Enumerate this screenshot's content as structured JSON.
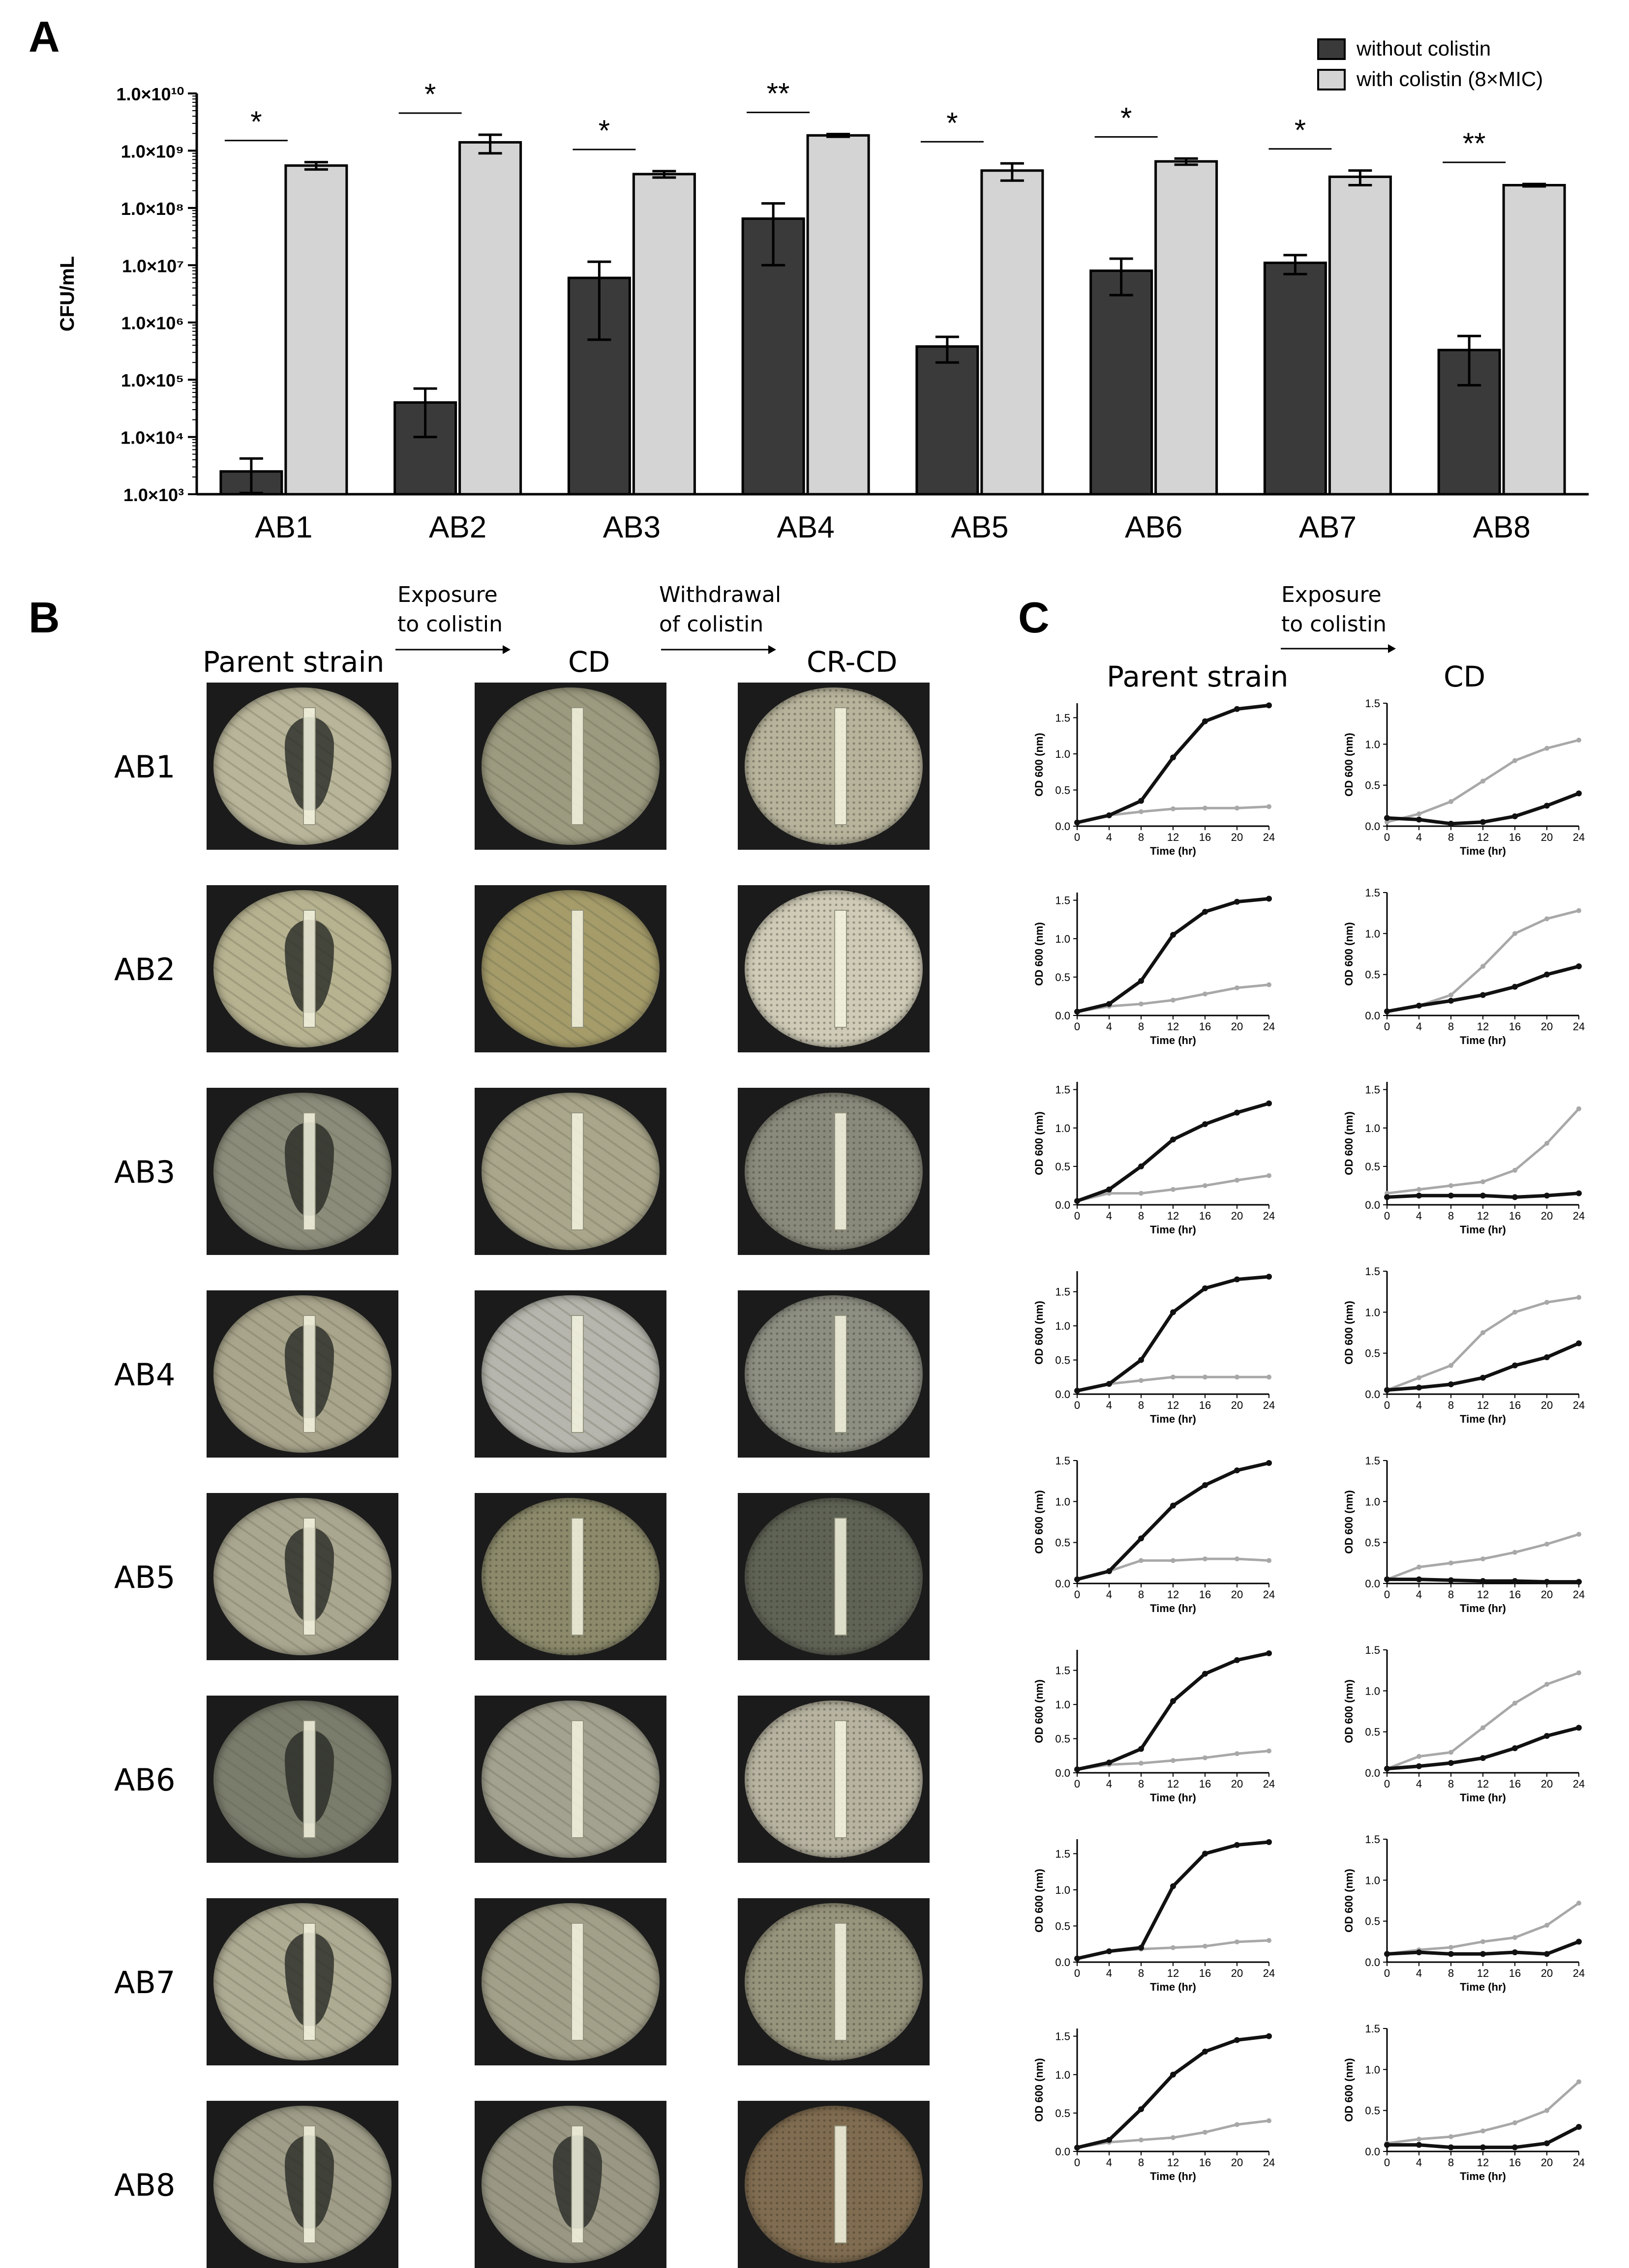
{
  "panel_labels": {
    "a": "A",
    "b": "B",
    "c": "C"
  },
  "colors": {
    "without": "#3a3a3a",
    "with": "#d4d4d4"
  },
  "chart_data": [
    {
      "type": "bar",
      "panel": "A",
      "ylabel": "CFU/mL",
      "scale": "log10",
      "ylim": [
        1000,
        10000000000
      ],
      "ytick_labels": [
        "1.0×10³",
        "1.0×10⁴",
        "1.0×10⁵",
        "1.0×10⁶",
        "1.0×10⁷",
        "1.0×10⁸",
        "1.0×10⁹",
        "1.0×10¹⁰"
      ],
      "categories": [
        "AB1",
        "AB2",
        "AB3",
        "AB4",
        "AB5",
        "AB6",
        "AB7",
        "AB8"
      ],
      "series": [
        {
          "name": "without colistin",
          "values": [
            2500,
            40000,
            6000000,
            65000000,
            380000,
            8000000,
            11000000,
            330000
          ],
          "errors": [
            1700,
            30000,
            5500000,
            55000000,
            180000,
            5000000,
            4000000,
            250000
          ]
        },
        {
          "name": "with colistin (8×MIC)",
          "values": [
            550000000,
            1400000000,
            390000000,
            1850000000,
            450000000,
            650000000,
            350000000,
            250000000
          ],
          "errors": [
            80000000,
            500000000,
            50000000,
            100000000,
            150000000,
            80000000,
            100000000,
            12000000
          ]
        }
      ],
      "significance": [
        "*",
        "*",
        "*",
        "**",
        "*",
        "*",
        "*",
        "**"
      ],
      "legend_position": "top-right"
    },
    {
      "type": "line",
      "panel": "C",
      "columns": [
        "Parent strain",
        "CD"
      ],
      "arrow_text": [
        "Exposure",
        "to colistin"
      ],
      "xlabel": "Time (hr)",
      "ylabel": "OD 600 (nm)",
      "x": [
        0,
        4,
        8,
        12,
        16,
        20,
        24
      ],
      "xticks": [
        "0",
        "4",
        "8",
        "12",
        "16",
        "20",
        "24"
      ],
      "rows": [
        {
          "strain": "AB1",
          "parent": {
            "ylim": [
              0,
              1.7
            ],
            "yticks": [
              "0.0",
              "0.5",
              "1.0",
              "1.5"
            ],
            "dark": [
              0.05,
              0.15,
              0.35,
              0.95,
              1.45,
              1.62,
              1.67
            ],
            "light": [
              0.05,
              0.15,
              0.2,
              0.24,
              0.25,
              0.25,
              0.27
            ]
          },
          "cd": {
            "ylim": [
              0,
              1.5
            ],
            "yticks": [
              "0.0",
              "0.5",
              "1.0",
              "1.5"
            ],
            "dark": [
              0.1,
              0.08,
              0.03,
              0.05,
              0.12,
              0.25,
              0.4
            ],
            "light": [
              0.05,
              0.15,
              0.3,
              0.55,
              0.8,
              0.95,
              1.05
            ]
          }
        },
        {
          "strain": "AB2",
          "parent": {
            "ylim": [
              0,
              1.6
            ],
            "yticks": [
              "0.0",
              "0.5",
              "1.0",
              "1.5"
            ],
            "dark": [
              0.05,
              0.15,
              0.45,
              1.05,
              1.35,
              1.48,
              1.52
            ],
            "light": [
              0.05,
              0.12,
              0.15,
              0.2,
              0.28,
              0.36,
              0.4
            ]
          },
          "cd": {
            "ylim": [
              0,
              1.5
            ],
            "yticks": [
              "0.0",
              "0.5",
              "1.0",
              "1.5"
            ],
            "dark": [
              0.05,
              0.12,
              0.18,
              0.25,
              0.35,
              0.5,
              0.6
            ],
            "light": [
              0.05,
              0.12,
              0.25,
              0.6,
              1.0,
              1.18,
              1.28
            ]
          }
        },
        {
          "strain": "AB3",
          "parent": {
            "ylim": [
              0,
              1.6
            ],
            "yticks": [
              "0.0",
              "0.5",
              "1.0",
              "1.5"
            ],
            "dark": [
              0.05,
              0.2,
              0.5,
              0.85,
              1.05,
              1.2,
              1.32
            ],
            "light": [
              0.05,
              0.15,
              0.15,
              0.2,
              0.25,
              0.32,
              0.38
            ]
          },
          "cd": {
            "ylim": [
              0,
              1.6
            ],
            "yticks": [
              "0.0",
              "0.5",
              "1.0",
              "1.5"
            ],
            "dark": [
              0.1,
              0.12,
              0.12,
              0.12,
              0.1,
              0.12,
              0.15
            ],
            "light": [
              0.15,
              0.2,
              0.25,
              0.3,
              0.45,
              0.8,
              1.25
            ]
          }
        },
        {
          "strain": "AB4",
          "parent": {
            "ylim": [
              0,
              1.8
            ],
            "yticks": [
              "0.0",
              "0.5",
              "1.0",
              "1.5"
            ],
            "dark": [
              0.05,
              0.15,
              0.5,
              1.2,
              1.55,
              1.68,
              1.72
            ],
            "light": [
              0.05,
              0.15,
              0.2,
              0.25,
              0.25,
              0.25,
              0.25
            ]
          },
          "cd": {
            "ylim": [
              0,
              1.5
            ],
            "yticks": [
              "0.0",
              "0.5",
              "1.0",
              "1.5"
            ],
            "dark": [
              0.05,
              0.08,
              0.12,
              0.2,
              0.35,
              0.45,
              0.62
            ],
            "light": [
              0.05,
              0.2,
              0.35,
              0.75,
              1.0,
              1.12,
              1.18
            ]
          }
        },
        {
          "strain": "AB5",
          "parent": {
            "ylim": [
              0,
              1.5
            ],
            "yticks": [
              "0.0",
              "0.5",
              "1.0",
              "1.5"
            ],
            "dark": [
              0.05,
              0.15,
              0.55,
              0.95,
              1.2,
              1.38,
              1.47
            ],
            "light": [
              0.05,
              0.15,
              0.28,
              0.28,
              0.3,
              0.3,
              0.28
            ]
          },
          "cd": {
            "ylim": [
              0,
              1.5
            ],
            "yticks": [
              "0.0",
              "0.5",
              "1.0",
              "1.5"
            ],
            "dark": [
              0.05,
              0.05,
              0.04,
              0.03,
              0.03,
              0.02,
              0.02
            ],
            "light": [
              0.05,
              0.2,
              0.25,
              0.3,
              0.38,
              0.48,
              0.6
            ]
          }
        },
        {
          "strain": "AB6",
          "parent": {
            "ylim": [
              0,
              1.8
            ],
            "yticks": [
              "0.0",
              "0.5",
              "1.0",
              "1.5"
            ],
            "dark": [
              0.05,
              0.15,
              0.35,
              1.05,
              1.45,
              1.65,
              1.75
            ],
            "light": [
              0.05,
              0.12,
              0.14,
              0.18,
              0.22,
              0.28,
              0.32
            ]
          },
          "cd": {
            "ylim": [
              0,
              1.5
            ],
            "yticks": [
              "0.0",
              "0.5",
              "1.0",
              "1.5"
            ],
            "dark": [
              0.05,
              0.08,
              0.12,
              0.18,
              0.3,
              0.45,
              0.55
            ],
            "light": [
              0.05,
              0.2,
              0.25,
              0.55,
              0.85,
              1.08,
              1.22
            ]
          }
        },
        {
          "strain": "AB7",
          "parent": {
            "ylim": [
              0,
              1.7
            ],
            "yticks": [
              "0.0",
              "0.5",
              "1.0",
              "1.5"
            ],
            "dark": [
              0.05,
              0.15,
              0.2,
              1.05,
              1.5,
              1.62,
              1.66
            ],
            "light": [
              0.05,
              0.15,
              0.18,
              0.2,
              0.22,
              0.28,
              0.3
            ]
          },
          "cd": {
            "ylim": [
              0,
              1.5
            ],
            "yticks": [
              "0.0",
              "0.5",
              "1.0",
              "1.5"
            ],
            "dark": [
              0.1,
              0.12,
              0.1,
              0.1,
              0.12,
              0.1,
              0.25
            ],
            "light": [
              0.1,
              0.15,
              0.18,
              0.25,
              0.3,
              0.45,
              0.72
            ]
          }
        },
        {
          "strain": "AB8",
          "parent": {
            "ylim": [
              0,
              1.6
            ],
            "yticks": [
              "0.0",
              "0.5",
              "1.0",
              "1.5"
            ],
            "dark": [
              0.05,
              0.15,
              0.55,
              1.0,
              1.3,
              1.45,
              1.5
            ],
            "light": [
              0.05,
              0.12,
              0.15,
              0.18,
              0.25,
              0.35,
              0.4
            ]
          },
          "cd": {
            "ylim": [
              0,
              1.5
            ],
            "yticks": [
              "0.0",
              "0.5",
              "1.0",
              "1.5"
            ],
            "dark": [
              0.08,
              0.08,
              0.05,
              0.05,
              0.05,
              0.1,
              0.3
            ],
            "light": [
              0.1,
              0.15,
              0.18,
              0.25,
              0.35,
              0.5,
              0.85
            ]
          }
        }
      ]
    }
  ],
  "panel_b": {
    "arrow1": [
      "Exposure",
      "to colistin"
    ],
    "arrow2": [
      "Withdrawal",
      "of colistin"
    ],
    "columns": [
      "Parent strain",
      "CD",
      "CR-CD"
    ],
    "rows": [
      "AB1",
      "AB2",
      "AB3",
      "AB4",
      "AB5",
      "AB6",
      "AB7",
      "AB8"
    ]
  }
}
